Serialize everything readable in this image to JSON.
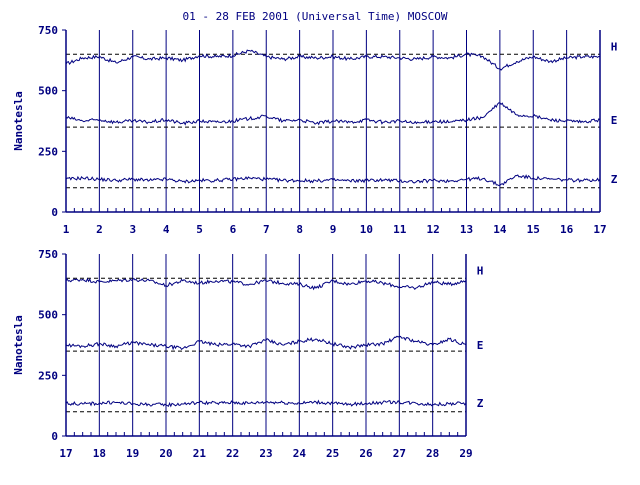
{
  "colors": {
    "trace": "#000080",
    "axis": "#000080",
    "baseline": "#000000",
    "background": "#ffffff"
  },
  "chart_data": [
    {
      "type": "line",
      "title": "01 - 28 FEB 2001 (Universal Time) MOSCOW",
      "xlabel": "",
      "ylabel": "Nanotesla",
      "xlim": [
        1,
        17
      ],
      "ylim": [
        0,
        750
      ],
      "xticks": [
        1,
        2,
        3,
        4,
        5,
        6,
        7,
        8,
        9,
        10,
        11,
        12,
        13,
        14,
        15,
        16,
        17
      ],
      "yticks": [
        0,
        250,
        500,
        750
      ],
      "grid": "vertical day lines",
      "legend": "series labels right of plot",
      "baselines": [
        650,
        350,
        100
      ],
      "series": [
        {
          "name": "H",
          "baseline": 650,
          "x": [
            1,
            1.5,
            2,
            2.5,
            3,
            3.5,
            4,
            4.5,
            5,
            5.5,
            6,
            6.5,
            7,
            7.5,
            8,
            8.5,
            9,
            9.5,
            10,
            10.5,
            11,
            11.5,
            12,
            12.5,
            13,
            13.5,
            14,
            14.5,
            15,
            15.5,
            16,
            16.5,
            17
          ],
          "values": [
            610,
            635,
            640,
            615,
            640,
            630,
            635,
            625,
            645,
            640,
            645,
            665,
            640,
            630,
            640,
            635,
            640,
            630,
            640,
            640,
            635,
            630,
            640,
            635,
            650,
            640,
            590,
            620,
            640,
            620,
            635,
            640,
            640
          ]
        },
        {
          "name": "E",
          "baseline": 350,
          "x": [
            1,
            1.5,
            2,
            2.5,
            3,
            3.5,
            4,
            4.5,
            5,
            5.5,
            6,
            6.5,
            7,
            7.5,
            8,
            8.5,
            9,
            9.5,
            10,
            10.5,
            11,
            11.5,
            12,
            12.5,
            13,
            13.5,
            14,
            14.5,
            15,
            15.5,
            16,
            16.5,
            17
          ],
          "values": [
            390,
            375,
            380,
            370,
            375,
            370,
            380,
            365,
            375,
            370,
            375,
            385,
            395,
            375,
            380,
            365,
            375,
            370,
            380,
            370,
            375,
            365,
            375,
            370,
            380,
            390,
            450,
            400,
            395,
            380,
            375,
            370,
            380
          ]
        },
        {
          "name": "Z",
          "baseline": 100,
          "x": [
            1,
            1.5,
            2,
            2.5,
            3,
            3.5,
            4,
            4.5,
            5,
            5.5,
            6,
            6.5,
            7,
            7.5,
            8,
            8.5,
            9,
            9.5,
            10,
            10.5,
            11,
            11.5,
            12,
            12.5,
            13,
            13.5,
            14,
            14.5,
            15,
            15.5,
            16,
            16.5,
            17
          ],
          "values": [
            135,
            140,
            135,
            130,
            135,
            130,
            135,
            125,
            130,
            130,
            135,
            140,
            135,
            130,
            130,
            128,
            132,
            128,
            130,
            132,
            128,
            125,
            130,
            128,
            135,
            138,
            110,
            150,
            140,
            135,
            132,
            130,
            135
          ]
        }
      ]
    },
    {
      "type": "line",
      "title": "",
      "xlabel": "",
      "ylabel": "Nanotesla",
      "xlim": [
        17,
        29
      ],
      "ylim": [
        0,
        750
      ],
      "xticks": [
        17,
        18,
        19,
        20,
        21,
        22,
        23,
        24,
        25,
        26,
        27,
        28,
        29
      ],
      "yticks": [
        0,
        250,
        500,
        750
      ],
      "grid": "vertical day lines",
      "legend": "series labels right of plot",
      "baselines": [
        650,
        350,
        100
      ],
      "series": [
        {
          "name": "H",
          "baseline": 650,
          "x": [
            17,
            17.5,
            18,
            18.5,
            19,
            19.5,
            20,
            20.5,
            21,
            21.5,
            22,
            22.5,
            23,
            23.5,
            24,
            24.5,
            25,
            25.5,
            26,
            26.5,
            27,
            27.5,
            28,
            28.5,
            29
          ],
          "values": [
            640,
            645,
            635,
            640,
            645,
            640,
            620,
            640,
            630,
            640,
            635,
            625,
            640,
            630,
            625,
            610,
            640,
            625,
            640,
            630,
            615,
            610,
            635,
            625,
            640
          ]
        },
        {
          "name": "E",
          "baseline": 350,
          "x": [
            17,
            17.5,
            18,
            18.5,
            19,
            19.5,
            20,
            20.5,
            21,
            21.5,
            22,
            22.5,
            23,
            23.5,
            24,
            24.5,
            25,
            25.5,
            26,
            26.5,
            27,
            27.5,
            28,
            28.5,
            29
          ],
          "values": [
            375,
            370,
            380,
            370,
            385,
            375,
            370,
            360,
            390,
            375,
            380,
            370,
            395,
            375,
            390,
            400,
            380,
            365,
            375,
            380,
            410,
            390,
            375,
            400,
            375
          ]
        },
        {
          "name": "Z",
          "baseline": 100,
          "x": [
            17,
            17.5,
            18,
            18.5,
            19,
            19.5,
            20,
            20.5,
            21,
            21.5,
            22,
            22.5,
            23,
            23.5,
            24,
            24.5,
            25,
            25.5,
            26,
            26.5,
            27,
            27.5,
            28,
            28.5,
            29
          ],
          "values": [
            135,
            132,
            135,
            138,
            132,
            130,
            128,
            132,
            138,
            135,
            138,
            135,
            140,
            138,
            135,
            140,
            135,
            130,
            135,
            138,
            140,
            135,
            130,
            132,
            135
          ]
        }
      ]
    }
  ]
}
